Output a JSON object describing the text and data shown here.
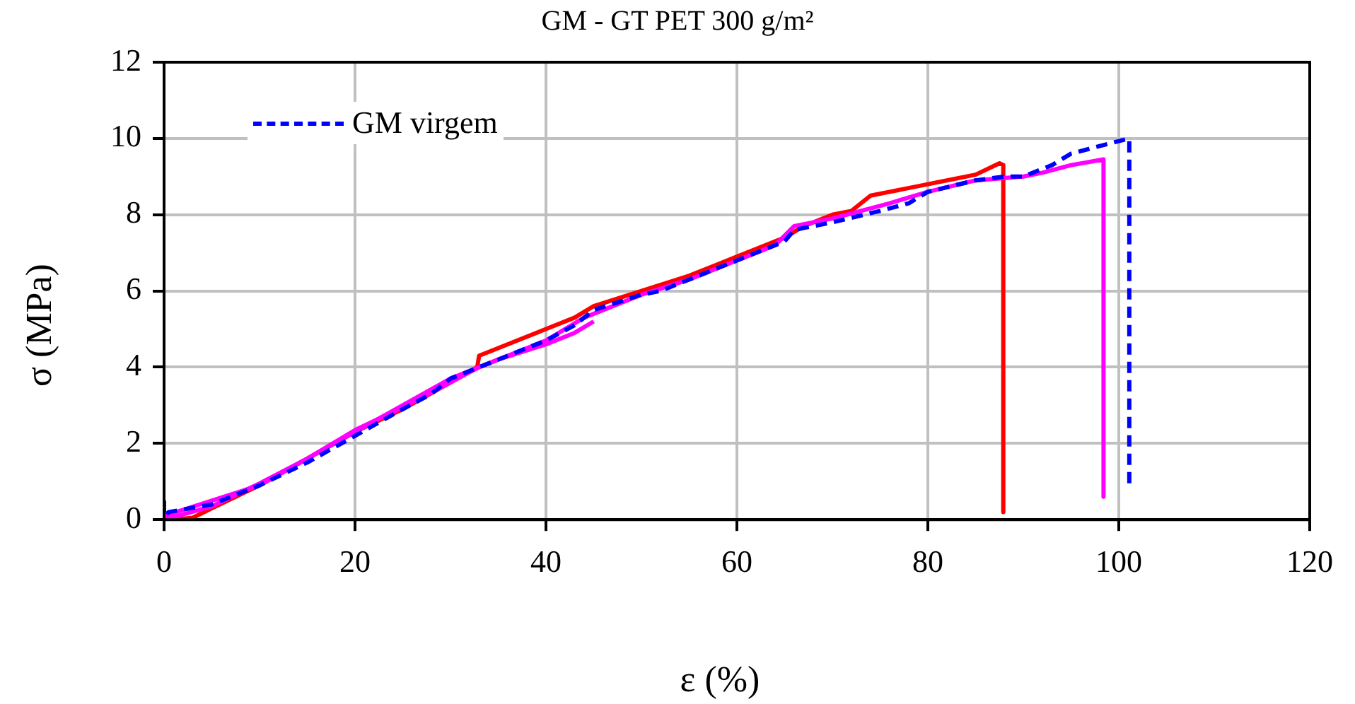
{
  "chart_data": {
    "type": "line",
    "title": "GM - GT PET 300 g/m²",
    "xlabel": "ε (%)",
    "ylabel": "σ (MPa)",
    "xlim": [
      0,
      120
    ],
    "xticks": [
      0,
      20,
      40,
      60,
      80,
      100,
      120
    ],
    "ylim": [
      0,
      12
    ],
    "yticks": [
      0,
      2,
      4,
      6,
      8,
      10,
      12
    ],
    "grid": true,
    "legend": "top left",
    "marker": "none",
    "series": [
      {
        "color": "#ff0000",
        "line_style": "solid",
        "x": [
          1,
          3,
          5,
          10,
          15,
          20,
          25,
          30,
          32.8,
          33,
          35,
          40,
          43,
          45,
          50,
          55,
          60,
          65,
          67,
          70,
          72,
          74,
          76,
          80,
          85,
          87.5,
          87.9,
          87.9
        ],
        "values": [
          0,
          0.05,
          0.3,
          0.9,
          1.6,
          2.3,
          2.9,
          3.6,
          4.0,
          4.3,
          4.5,
          5.0,
          5.3,
          5.6,
          6.0,
          6.4,
          6.9,
          7.4,
          7.7,
          8.0,
          8.1,
          8.5,
          8.6,
          8.8,
          9.05,
          9.35,
          9.3,
          0.2
        ]
      },
      {
        "color": "#ff00ff",
        "line_style": "solid",
        "x": [
          0,
          5,
          10,
          15,
          20,
          25,
          30,
          33,
          35,
          40,
          43,
          45
        ],
        "values": [
          0,
          0.35,
          0.95,
          1.6,
          2.35,
          2.95,
          3.6,
          4.0,
          4.2,
          4.6,
          4.9,
          5.2
        ]
      },
      {
        "color": "#ff00ff",
        "line_style": "solid",
        "x": [
          0,
          10,
          20,
          30,
          40,
          44,
          50,
          55,
          60,
          64,
          66,
          70,
          73,
          76,
          80,
          85,
          90,
          92,
          95,
          98.4,
          98.4
        ],
        "values": [
          0.1,
          0.9,
          2.3,
          3.7,
          4.7,
          5.3,
          5.9,
          6.3,
          6.8,
          7.2,
          7.7,
          7.9,
          8.1,
          8.3,
          8.6,
          8.9,
          9.0,
          9.1,
          9.3,
          9.45,
          0.6
        ]
      },
      {
        "name": "GM virgem",
        "color": "#0000ff",
        "line_style": "dashed",
        "x": [
          0,
          0,
          0.5,
          5,
          10,
          15,
          20,
          25,
          28,
          30,
          33,
          35,
          40,
          43,
          45,
          50,
          52,
          55,
          60,
          65,
          66,
          70,
          75,
          78,
          80,
          85,
          88,
          90,
          93,
          95,
          98,
          101.1,
          101.1
        ],
        "values": [
          0.5,
          0.1,
          0.2,
          0.4,
          0.9,
          1.5,
          2.2,
          2.9,
          3.3,
          3.7,
          4.0,
          4.2,
          4.7,
          5.1,
          5.5,
          5.9,
          6.0,
          6.3,
          6.8,
          7.3,
          7.6,
          7.8,
          8.1,
          8.3,
          8.6,
          8.9,
          9.0,
          9.0,
          9.3,
          9.6,
          9.8,
          10.0,
          0.8
        ]
      }
    ]
  }
}
